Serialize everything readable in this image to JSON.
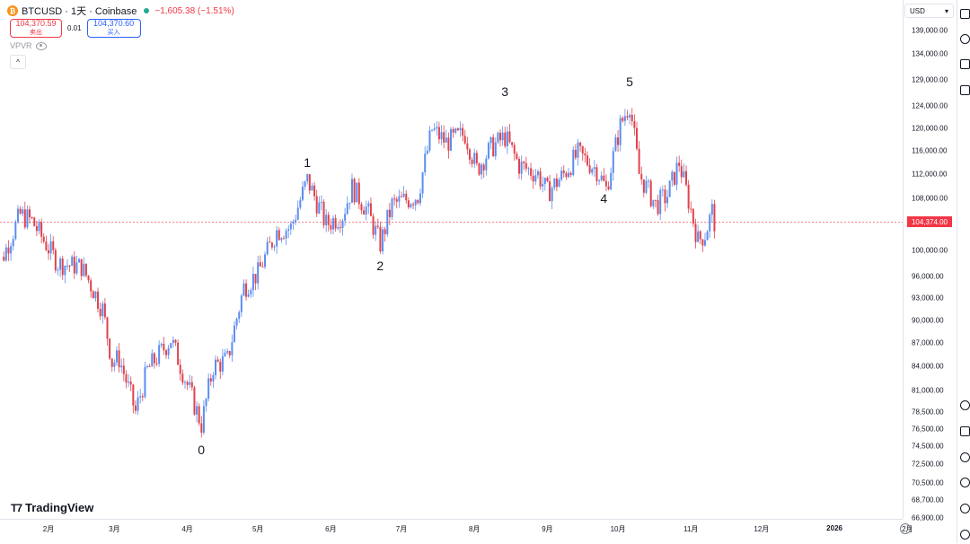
{
  "header": {
    "icon_letter": "₿",
    "title": "BTCUSD · 1天 · Coinbase",
    "change": "−1,605.38 (−1.51%)",
    "sell_price": "104,370.59",
    "sell_label": "卖出",
    "spread": "0.01",
    "buy_price": "104,370.60",
    "buy_label": "买入",
    "indicator": "VPVR"
  },
  "currency": "USD",
  "last_price_label": "104,374.00",
  "colors": {
    "up": "#5b8def",
    "down": "#e0424d",
    "last_price": "#f23645"
  },
  "logo": {
    "text": "TradingView"
  },
  "price_ticks": [
    "139,000.00",
    "134,000.00",
    "129,000.00",
    "124,000.00",
    "120,000.00",
    "116,000.00",
    "112,000.00",
    "108,000.00",
    "100,000.00",
    "96,000.00",
    "93,000.00",
    "90,000.00",
    "87,000.00",
    "84,000.00",
    "81,000.00",
    "78,500.00",
    "76,500.00",
    "74,500.00",
    "72,500.00",
    "70,500.00",
    "68,700.00",
    "66,900.00"
  ],
  "time_ticks": [
    "2月",
    "3月",
    "4月",
    "5月",
    "6月",
    "7月",
    "8月",
    "9月",
    "10月",
    "11月",
    "12月",
    "2026",
    "2月"
  ],
  "icons": [
    "bitcoin-icon",
    "eye-icon",
    "chevron-up-icon",
    "settings-icon",
    "calendar-icon",
    "layers-icon",
    "bookmark-icon"
  ],
  "chart_data": {
    "type": "candlestick",
    "interval": "1天",
    "currency": "USD",
    "scale": "log",
    "last_price": 104374,
    "wave_labels": [
      {
        "label": "0",
        "date": "2025-04-07",
        "price": 74500
      },
      {
        "label": "1",
        "date": "2025-05-22",
        "price": 111900
      },
      {
        "label": "2",
        "date": "2025-06-22",
        "price": 98200
      },
      {
        "label": "3",
        "date": "2025-08-14",
        "price": 124400
      },
      {
        "label": "4",
        "date": "2025-09-25",
        "price": 108600
      },
      {
        "label": "5",
        "date": "2025-10-06",
        "price": 126200
      }
    ],
    "price_path": [
      {
        "date": "2025-01-08",
        "close": 95000
      },
      {
        "date": "2025-01-20",
        "close": 105500
      },
      {
        "date": "2025-01-25",
        "close": 104500
      },
      {
        "date": "2025-02-05",
        "close": 98000
      },
      {
        "date": "2025-02-15",
        "close": 97500
      },
      {
        "date": "2025-02-24",
        "close": 91500
      },
      {
        "date": "2025-02-28",
        "close": 84500
      },
      {
        "date": "2025-03-03",
        "close": 85000
      },
      {
        "date": "2025-03-10",
        "close": 78500
      },
      {
        "date": "2025-03-15",
        "close": 83500
      },
      {
        "date": "2025-03-25",
        "close": 87500
      },
      {
        "date": "2025-03-31",
        "close": 82500
      },
      {
        "date": "2025-04-07",
        "close": 77000
      },
      {
        "date": "2025-04-12",
        "close": 84000
      },
      {
        "date": "2025-04-18",
        "close": 84800
      },
      {
        "date": "2025-04-25",
        "close": 94500
      },
      {
        "date": "2025-05-01",
        "close": 96500
      },
      {
        "date": "2025-05-09",
        "close": 103000
      },
      {
        "date": "2025-05-15",
        "close": 103500
      },
      {
        "date": "2025-05-22",
        "close": 111000
      },
      {
        "date": "2025-05-30",
        "close": 104000
      },
      {
        "date": "2025-06-06",
        "close": 105500
      },
      {
        "date": "2025-06-10",
        "close": 109800
      },
      {
        "date": "2025-06-16",
        "close": 106500
      },
      {
        "date": "2025-06-22",
        "close": 101000
      },
      {
        "date": "2025-06-27",
        "close": 107000
      },
      {
        "date": "2025-07-08",
        "close": 108500
      },
      {
        "date": "2025-07-14",
        "close": 119800
      },
      {
        "date": "2025-07-20",
        "close": 117500
      },
      {
        "date": "2025-07-28",
        "close": 119000
      },
      {
        "date": "2025-08-02",
        "close": 112800
      },
      {
        "date": "2025-08-08",
        "close": 116500
      },
      {
        "date": "2025-08-14",
        "close": 118500
      },
      {
        "date": "2025-08-20",
        "close": 113500
      },
      {
        "date": "2025-08-28",
        "close": 112000
      },
      {
        "date": "2025-09-01",
        "close": 109000
      },
      {
        "date": "2025-09-08",
        "close": 112000
      },
      {
        "date": "2025-09-14",
        "close": 115500
      },
      {
        "date": "2025-09-22",
        "close": 112800
      },
      {
        "date": "2025-09-26",
        "close": 109500
      },
      {
        "date": "2025-10-02",
        "close": 120500
      },
      {
        "date": "2025-10-06",
        "close": 124500
      },
      {
        "date": "2025-10-10",
        "close": 112000
      },
      {
        "date": "2025-10-17",
        "close": 107000
      },
      {
        "date": "2025-10-22",
        "close": 108500
      },
      {
        "date": "2025-10-27",
        "close": 114000
      },
      {
        "date": "2025-11-04",
        "close": 101500
      },
      {
        "date": "2025-11-07",
        "close": 102500
      },
      {
        "date": "2025-11-10",
        "close": 106000
      },
      {
        "date": "2025-11-11",
        "close": 104374
      }
    ]
  }
}
